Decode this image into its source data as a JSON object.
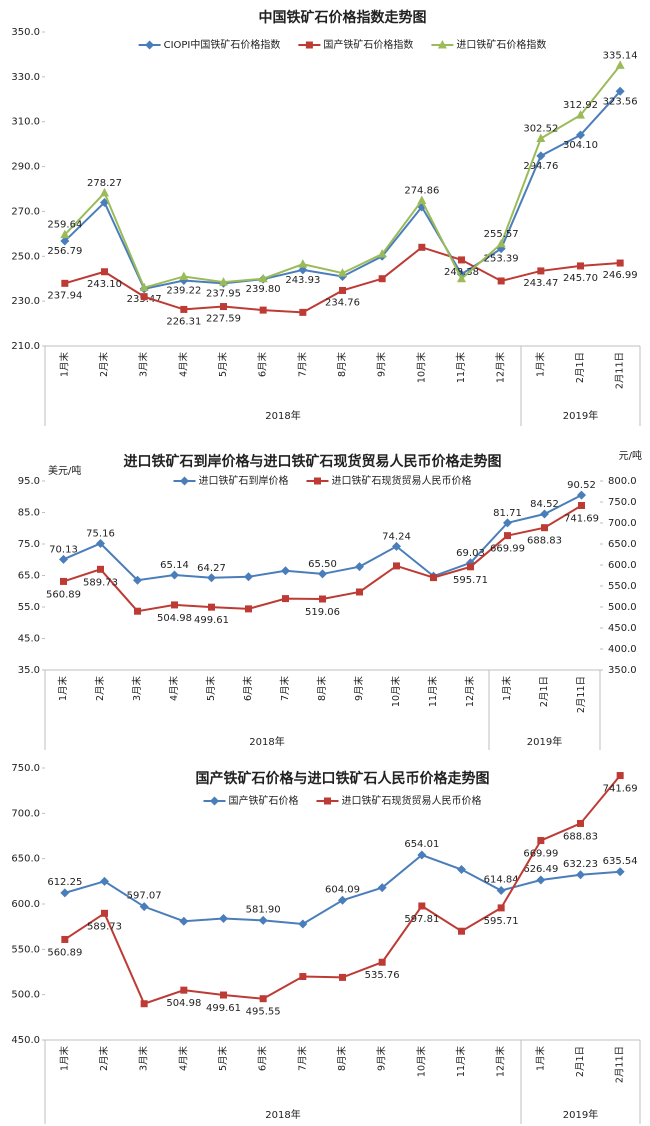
{
  "chart_data": [
    {
      "type": "line",
      "title": "中国铁矿石价格指数走势图",
      "categories": [
        "1月末",
        "2月末",
        "3月末",
        "4月末",
        "5月末",
        "6月末",
        "7月末",
        "8月末",
        "9月末",
        "10月末",
        "11月末",
        "12月末",
        "1月末",
        "2月1日",
        "2月11日"
      ],
      "x_groups": [
        {
          "label": "2018年",
          "span": 12
        },
        {
          "label": "2019年",
          "span": 3
        }
      ],
      "ylim": [
        210,
        350
      ],
      "yticks": [
        {
          "value": 210,
          "label": "210.0"
        },
        {
          "value": 230,
          "label": "230.0"
        },
        {
          "value": 250,
          "label": "250.0"
        },
        {
          "value": 270,
          "label": "270.0"
        },
        {
          "value": 290,
          "label": "290.0"
        },
        {
          "value": 310,
          "label": "310.0"
        },
        {
          "value": 330,
          "label": "330.0"
        },
        {
          "value": 350,
          "label": "350.0"
        }
      ],
      "series": [
        {
          "name": "CIOPI中国铁矿石价格指数",
          "color": "#4a7ebb",
          "marker": "diamond",
          "values": [
            256.79,
            274,
            235.47,
            239.22,
            237.95,
            239.8,
            243.93,
            241,
            250,
            272,
            242,
            253.39,
            294.76,
            304.1,
            323.56
          ],
          "value_labels": [
            "256.79",
            null,
            "235.47",
            "239.22",
            "237.95",
            "239.80",
            "243.93",
            null,
            null,
            null,
            null,
            "253.39",
            "294.76",
            "304.10",
            "323.56"
          ]
        },
        {
          "name": "国产铁矿石价格指数",
          "color": "#be3a34",
          "marker": "square",
          "values": [
            237.94,
            243.1,
            232,
            226.31,
            227.59,
            226,
            225,
            234.76,
            240,
            254,
            248.38,
            239,
            243.47,
            245.7,
            246.99
          ],
          "value_labels": [
            "237.94",
            "243.10",
            null,
            "226.31",
            "227.59",
            null,
            null,
            "234.76",
            null,
            null,
            "248.38",
            null,
            "243.47",
            "245.70",
            "246.99"
          ]
        },
        {
          "name": "进口铁矿石价格指数",
          "color": "#9bbb59",
          "marker": "triangle",
          "values": [
            259.64,
            278.27,
            236,
            241,
            238.5,
            240,
            246.5,
            242.5,
            251,
            274.86,
            240,
            255.57,
            302.52,
            312.92,
            335.14
          ],
          "value_labels": [
            "259.64",
            "278.27",
            null,
            null,
            null,
            null,
            null,
            null,
            null,
            "274.86",
            null,
            "255.57",
            "302.52",
            "312.92",
            "335.14"
          ]
        }
      ]
    },
    {
      "type": "line",
      "title": "进口铁矿石到岸价格与进口铁矿石现货贸易人民币价格走势图",
      "y_label": "美元/吨",
      "y2_label": "元/吨",
      "categories": [
        "1月末",
        "2月末",
        "3月末",
        "4月末",
        "5月末",
        "6月末",
        "7月末",
        "8月末",
        "9月末",
        "10月末",
        "11月末",
        "12月末",
        "1月末",
        "2月1日",
        "2月11日"
      ],
      "x_groups": [
        {
          "label": "2018年",
          "span": 12
        },
        {
          "label": "2019年",
          "span": 3
        }
      ],
      "ylim": [
        35,
        95
      ],
      "yticks": [
        {
          "value": 35,
          "label": "35.0"
        },
        {
          "value": 45,
          "label": "45.0"
        },
        {
          "value": 55,
          "label": "55.0"
        },
        {
          "value": 65,
          "label": "65.0"
        },
        {
          "value": 75,
          "label": "75.0"
        },
        {
          "value": 85,
          "label": "85.0"
        },
        {
          "value": 95,
          "label": "95.0"
        }
      ],
      "y2lim": [
        350,
        800
      ],
      "y2ticks": [
        {
          "value": 350,
          "label": "350.0"
        },
        {
          "value": 400,
          "label": "400.0"
        },
        {
          "value": 450,
          "label": "450.0"
        },
        {
          "value": 500,
          "label": "500.0"
        },
        {
          "value": 550,
          "label": "550.0"
        },
        {
          "value": 600,
          "label": "600.0"
        },
        {
          "value": 650,
          "label": "650.0"
        },
        {
          "value": 700,
          "label": "700.0"
        },
        {
          "value": 750,
          "label": "750.0"
        },
        {
          "value": 800,
          "label": "800.0"
        }
      ],
      "series": [
        {
          "name": "进口铁矿石到岸价格",
          "color": "#4a7ebb",
          "marker": "diamond",
          "values": [
            70.13,
            75.16,
            63.5,
            65.14,
            64.27,
            64.6,
            66.5,
            65.5,
            67.8,
            74.24,
            64.8,
            69.03,
            81.71,
            84.52,
            90.52
          ],
          "value_labels": [
            "70.13",
            "75.16",
            null,
            "65.14",
            "64.27",
            null,
            null,
            "65.50",
            null,
            "74.24",
            null,
            "69.03",
            "81.71",
            "84.52",
            "90.52"
          ]
        },
        {
          "name": "进口铁矿石现货贸易人民币价格",
          "color": "#be3a34",
          "marker": "square",
          "axis": "y2",
          "values": [
            560.89,
            589.73,
            490,
            504.98,
            499.61,
            495.55,
            520,
            519.06,
            535.76,
            597.81,
            570,
            595.71,
            669.99,
            688.83,
            741.69
          ],
          "value_labels": [
            "560.89",
            "589.73",
            null,
            "504.98",
            "499.61",
            null,
            null,
            "519.06",
            null,
            null,
            null,
            "595.71",
            "669.99",
            "688.83",
            "741.69"
          ]
        }
      ]
    },
    {
      "type": "line",
      "title": "国产铁矿石价格与进口铁矿石人民币价格走势图",
      "categories": [
        "1月末",
        "2月末",
        "3月末",
        "4月末",
        "5月末",
        "6月末",
        "7月末",
        "8月末",
        "9月末",
        "10月末",
        "11月末",
        "12月末",
        "1月末",
        "2月1日",
        "2月11日"
      ],
      "x_groups": [
        {
          "label": "2018年",
          "span": 12
        },
        {
          "label": "2019年",
          "span": 3
        }
      ],
      "ylim": [
        450,
        750
      ],
      "yticks": [
        {
          "value": 450,
          "label": "450.0"
        },
        {
          "value": 500,
          "label": "500.0"
        },
        {
          "value": 550,
          "label": "550.0"
        },
        {
          "value": 600,
          "label": "600.0"
        },
        {
          "value": 650,
          "label": "650.0"
        },
        {
          "value": 700,
          "label": "700.0"
        },
        {
          "value": 750,
          "label": "750.0"
        }
      ],
      "series": [
        {
          "name": "国产铁矿石价格",
          "color": "#4a7ebb",
          "marker": "diamond",
          "values": [
            612.25,
            625,
            597.07,
            581,
            584,
            581.9,
            578,
            604.09,
            618,
            654.01,
            638,
            614.84,
            626.49,
            632.23,
            635.54
          ],
          "value_labels": [
            "612.25",
            null,
            "597.07",
            null,
            null,
            "581.90",
            null,
            "604.09",
            null,
            "654.01",
            null,
            "614.84",
            "626.49",
            "632.23",
            "635.54"
          ]
        },
        {
          "name": "进口铁矿石现货贸易人民币价格",
          "color": "#be3a34",
          "marker": "square",
          "values": [
            560.89,
            589.73,
            490,
            504.98,
            499.61,
            495.55,
            520,
            519.06,
            535.76,
            597.81,
            570,
            595.71,
            669.99,
            688.83,
            741.69
          ],
          "value_labels": [
            "560.89",
            "589.73",
            null,
            "504.98",
            "499.61",
            "495.55",
            null,
            null,
            "535.76",
            "597.81",
            null,
            "595.71",
            "669.99",
            "688.83",
            "741.69"
          ]
        }
      ]
    }
  ]
}
